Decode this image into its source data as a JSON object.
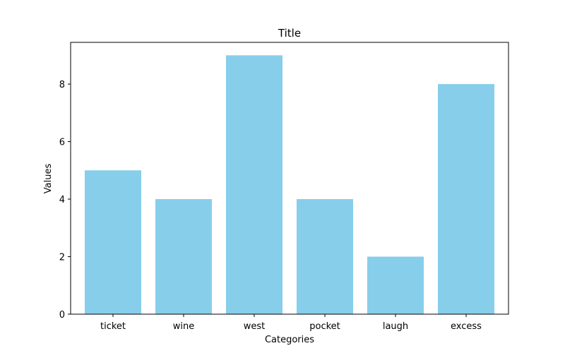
{
  "chart_data": {
    "type": "bar",
    "title": "Title",
    "xlabel": "Categories",
    "ylabel": "Values",
    "categories": [
      "ticket",
      "wine",
      "west",
      "pocket",
      "laugh",
      "excess"
    ],
    "values": [
      5,
      4,
      9,
      4,
      2,
      8
    ],
    "ylim": [
      0,
      9.45
    ],
    "yticks": [
      0,
      2,
      4,
      6,
      8
    ],
    "grid": false,
    "bar_color": "#87CEEB",
    "axis_color": "#000000"
  }
}
